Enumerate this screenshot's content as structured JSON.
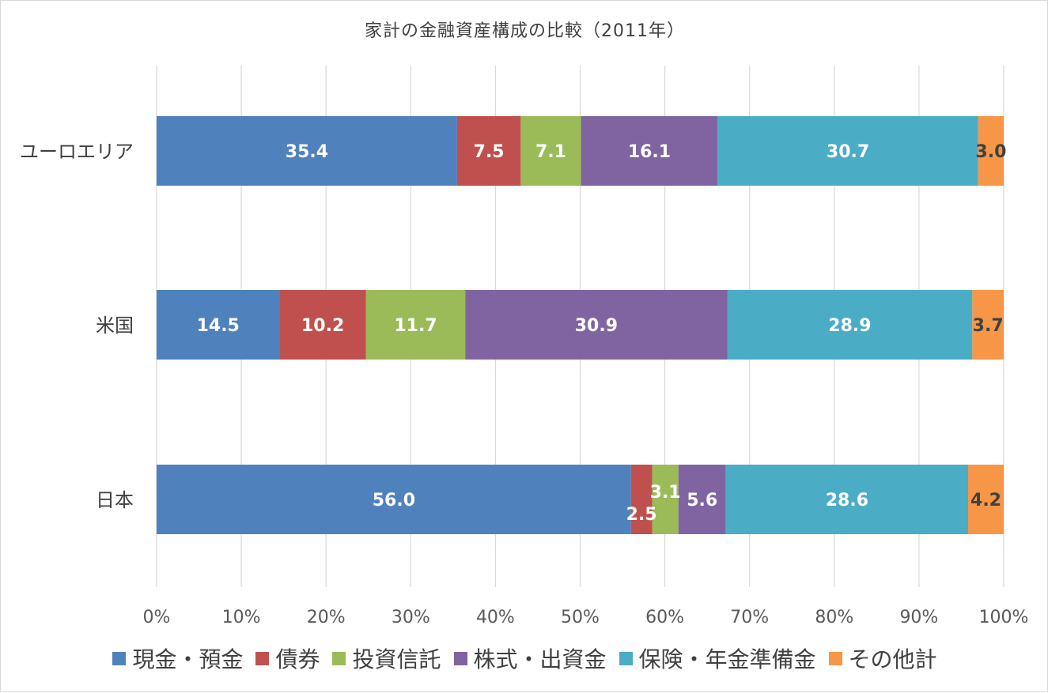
{
  "chart_data": {
    "type": "bar",
    "orientation": "horizontal",
    "stacked": "percent",
    "title": "家計の金融資産構成の比較（2011年）",
    "categories": [
      "ユーロエリア",
      "米国",
      "日本"
    ],
    "series": [
      {
        "name": "現金・預金",
        "color": "#4f81bd",
        "label_color": "#ffffff",
        "values": [
          35.4,
          14.5,
          56.0
        ]
      },
      {
        "name": "債券",
        "color": "#c0504d",
        "label_color": "#ffffff",
        "values": [
          7.5,
          10.2,
          2.5
        ]
      },
      {
        "name": "投資信託",
        "color": "#9bbb59",
        "label_color": "#ffffff",
        "values": [
          7.1,
          11.7,
          3.1
        ]
      },
      {
        "name": "株式・出資金",
        "color": "#8064a2",
        "label_color": "#ffffff",
        "values": [
          16.1,
          30.9,
          5.6
        ]
      },
      {
        "name": "保険・年金準備金",
        "color": "#4bacc6",
        "label_color": "#ffffff",
        "values": [
          30.7,
          28.9,
          28.6
        ]
      },
      {
        "name": "その他計",
        "color": "#f79646",
        "label_color": "#404040",
        "values": [
          3.0,
          3.7,
          4.2
        ]
      }
    ],
    "x_ticks": [
      "0%",
      "10%",
      "20%",
      "30%",
      "40%",
      "50%",
      "60%",
      "70%",
      "80%",
      "90%",
      "100%"
    ],
    "xlim": [
      0,
      100
    ],
    "grid": true,
    "legend_position": "bottom"
  }
}
